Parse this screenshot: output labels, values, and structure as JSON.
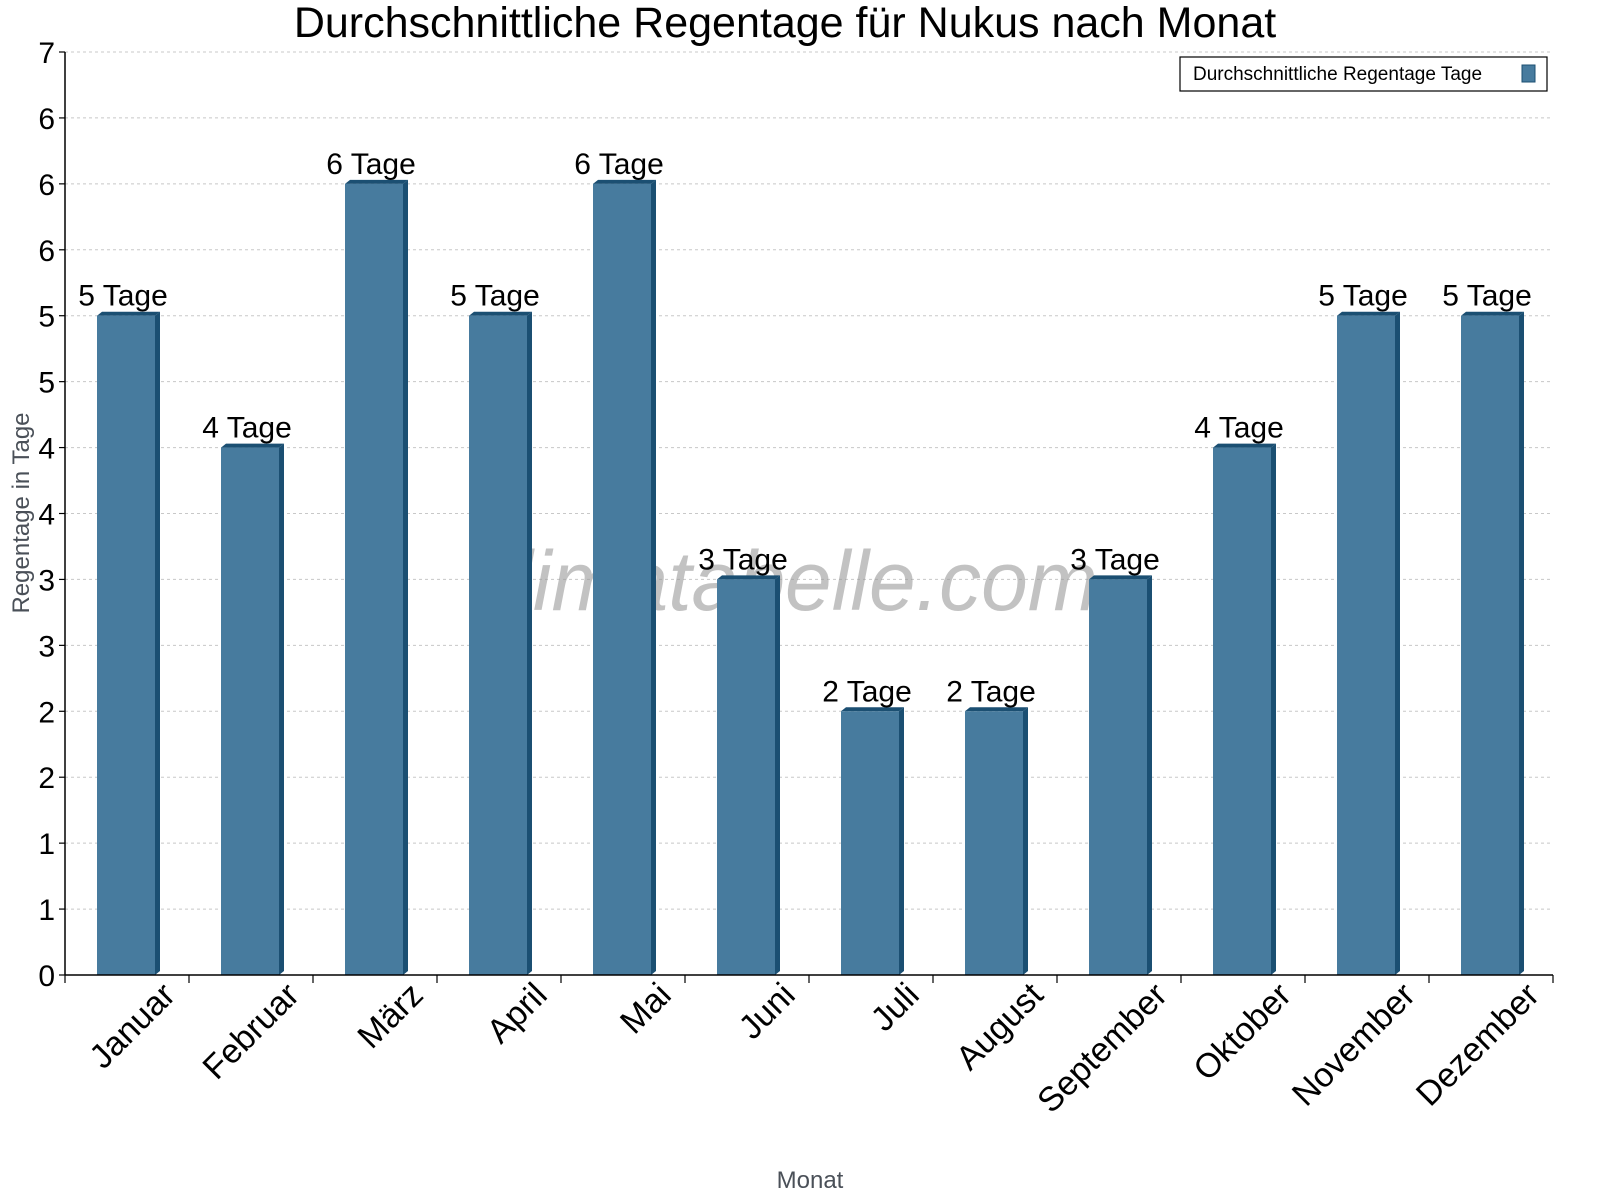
{
  "chart_data": {
    "type": "bar",
    "title": "Durchschnittliche Regentage für Nukus nach Monat",
    "xlabel": "Monat",
    "ylabel": "Regentage in Tage",
    "ylim": [
      0,
      7
    ],
    "y_ticks": [
      0,
      0.5,
      1,
      1.5,
      2,
      2.5,
      3,
      3.5,
      4,
      4.5,
      5,
      5.5,
      6,
      6.5,
      7
    ],
    "y_tick_labels": [
      "0",
      "1",
      "1",
      "2",
      "2",
      "3",
      "3",
      "4",
      "4",
      "5",
      "5",
      "6",
      "6",
      "6",
      "7"
    ],
    "grid": true,
    "legend_position": "top-right",
    "categories": [
      "Januar",
      "Februar",
      "März",
      "April",
      "Mai",
      "Juni",
      "Juli",
      "August",
      "September",
      "Oktober",
      "November",
      "Dezember"
    ],
    "series": [
      {
        "name": "Durchschnittliche Regentage Tage",
        "color": "#477b9e",
        "values": [
          5,
          4,
          6,
          5,
          6,
          3,
          2,
          2,
          3,
          4,
          5,
          5
        ],
        "data_labels": [
          "5 Tage",
          "4 Tage",
          "6 Tage",
          "5 Tage",
          "6 Tage",
          "3 Tage",
          "2 Tage",
          "2 Tage",
          "3 Tage",
          "4 Tage",
          "5 Tage",
          "5 Tage"
        ]
      }
    ],
    "watermark": "klimatabelle.com"
  },
  "colors": {
    "bar_front": "#477b9e",
    "bar_side": "#1b4f72",
    "grid": "#c8c8c8",
    "axis": "#000000"
  }
}
